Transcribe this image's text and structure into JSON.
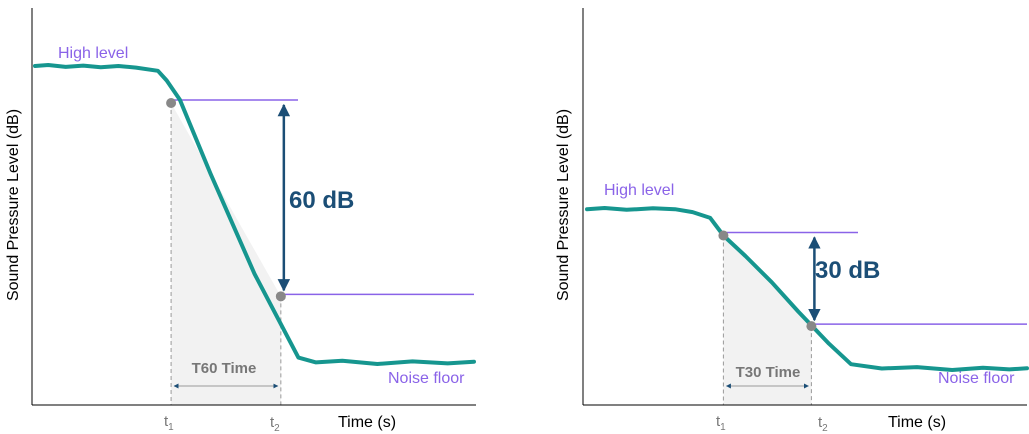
{
  "colors": {
    "curve": "#16968f",
    "level_line": "#8a63e8",
    "level_text": "#8a63e8",
    "arrow": "#1b4e76",
    "marker": "#888888",
    "shade": "#f2f2f2",
    "dashed": "#9a9a9a"
  },
  "chart_data": [
    {
      "type": "line",
      "title": "",
      "xlabel": "Time (s)",
      "ylabel": "Sound Pressure Level (dB)",
      "series": [
        {
          "values_t": [
            0,
            0.03,
            0.07,
            0.11,
            0.15,
            0.19,
            0.23,
            0.28,
            0.3,
            0.33,
            0.4,
            0.5,
            0.6,
            0.64,
            0.7,
            0.78,
            0.86,
            0.94,
            1.0
          ],
          "values_level": [
            -3.5,
            -3.2,
            -3.8,
            -3.4,
            -3.9,
            -3.5,
            -4.0,
            -5.0,
            -8.0,
            -14.0,
            -37.0,
            -68.0,
            -94.0,
            -95.5,
            -95.0,
            -96.0,
            -95.2,
            -95.8,
            -95.3
          ]
        }
      ],
      "points": [
        {
          "label": "t1",
          "t": 0.31,
          "level": -15.0
        },
        {
          "label": "t2",
          "t": 0.56,
          "level": -75.0
        }
      ],
      "high_level_label": "High level",
      "noise_floor_label": "Noise floor",
      "decay_label": "60 dB",
      "time_label": "T60 Time",
      "tick_t1": "t",
      "tick_t2": "t",
      "tick_t1_sub": "1",
      "tick_t2_sub": "2"
    },
    {
      "type": "line",
      "title": "",
      "xlabel": "Time (s)",
      "ylabel": "Sound Pressure Level (dB)",
      "series": [
        {
          "values_t": [
            0,
            0.04,
            0.09,
            0.15,
            0.2,
            0.24,
            0.28,
            0.31,
            0.36,
            0.42,
            0.48,
            0.55,
            0.6,
            0.67,
            0.75,
            0.83,
            0.9,
            0.96,
            1.0
          ],
          "values_level": [
            -40.0,
            -39.6,
            -40.2,
            -39.7,
            -40.0,
            -41.0,
            -43.0,
            -49.0,
            -56.0,
            -65.0,
            -75.0,
            -86.0,
            -93.0,
            -94.5,
            -94.0,
            -95.0,
            -94.2,
            -94.8,
            -94.4
          ]
        }
      ],
      "points": [
        {
          "label": "t1",
          "t": 0.31,
          "level": -49.0
        },
        {
          "label": "t2",
          "t": 0.51,
          "level": -80.0
        }
      ],
      "high_level_label": "High level",
      "noise_floor_label": "Noise floor",
      "decay_label": "30 dB",
      "time_label": "T30 Time",
      "tick_t1": "t",
      "tick_t2": "t",
      "tick_t1_sub": "1",
      "tick_t2_sub": "2"
    }
  ]
}
